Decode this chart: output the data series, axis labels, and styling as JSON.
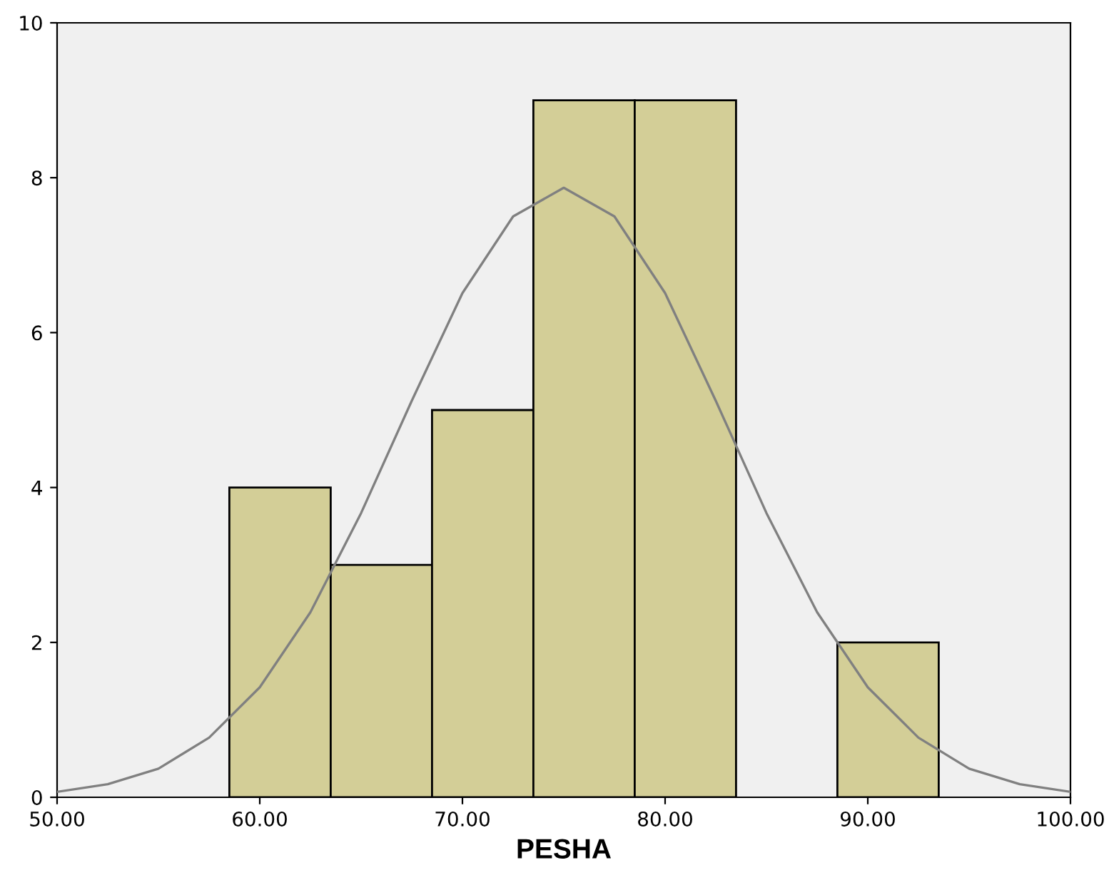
{
  "chart_data": {
    "type": "histogram",
    "xlabel": "PESHA",
    "series": [
      {
        "bins": [
          58.5,
          63.5,
          68.5,
          73.5,
          78.5,
          83.5,
          88.5,
          93.5
        ],
        "values": [
          4,
          3,
          5,
          9,
          9,
          0,
          2
        ],
        "color": "#d3ce97"
      },
      {
        "type": "line",
        "color": "#808080",
        "x": [
          50,
          52.5,
          55,
          57.5,
          60,
          62.5,
          65,
          67.5,
          70,
          72.5,
          75,
          77.5,
          80,
          82.5,
          85,
          87.5,
          90,
          92.5,
          95,
          97.5,
          100
        ],
        "values": [
          0.07,
          0.17,
          0.37,
          0.77,
          1.42,
          2.39,
          3.67,
          5.12,
          6.51,
          7.5,
          7.87,
          7.5,
          6.51,
          5.12,
          3.67,
          2.39,
          1.42,
          0.77,
          0.37,
          0.17,
          0.07
        ]
      }
    ],
    "xlim": [
      50,
      100
    ],
    "xticks": [
      {
        "value": 50,
        "label": "50.00"
      },
      {
        "value": 60,
        "label": "60.00"
      },
      {
        "value": 70,
        "label": "70.00"
      },
      {
        "value": 80,
        "label": "80.00"
      },
      {
        "value": 90,
        "label": "90.00"
      },
      {
        "value": 100,
        "label": "100.00"
      }
    ],
    "ylim": [
      0,
      10
    ],
    "yticks": [
      0,
      2,
      4,
      6,
      8,
      10
    ],
    "grid": false
  }
}
